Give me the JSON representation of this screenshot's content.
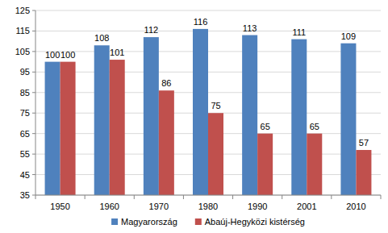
{
  "chart_data": {
    "type": "bar",
    "categories": [
      "1950",
      "1960",
      "1970",
      "1980",
      "1990",
      "2001",
      "2010"
    ],
    "series": [
      {
        "name": "Magyarország",
        "color": "#4f81bd",
        "values": [
          100,
          108,
          112,
          116,
          113,
          111,
          109
        ]
      },
      {
        "name": "Abaúj-Hegyközi kistérség",
        "color": "#c0504d",
        "values": [
          100,
          101,
          86,
          75,
          65,
          65,
          57
        ]
      }
    ],
    "ylim": [
      35,
      125
    ],
    "yticks": [
      35,
      45,
      55,
      65,
      75,
      85,
      95,
      105,
      115,
      125
    ],
    "grid": true,
    "data_labels": true,
    "legend": "bottom"
  }
}
